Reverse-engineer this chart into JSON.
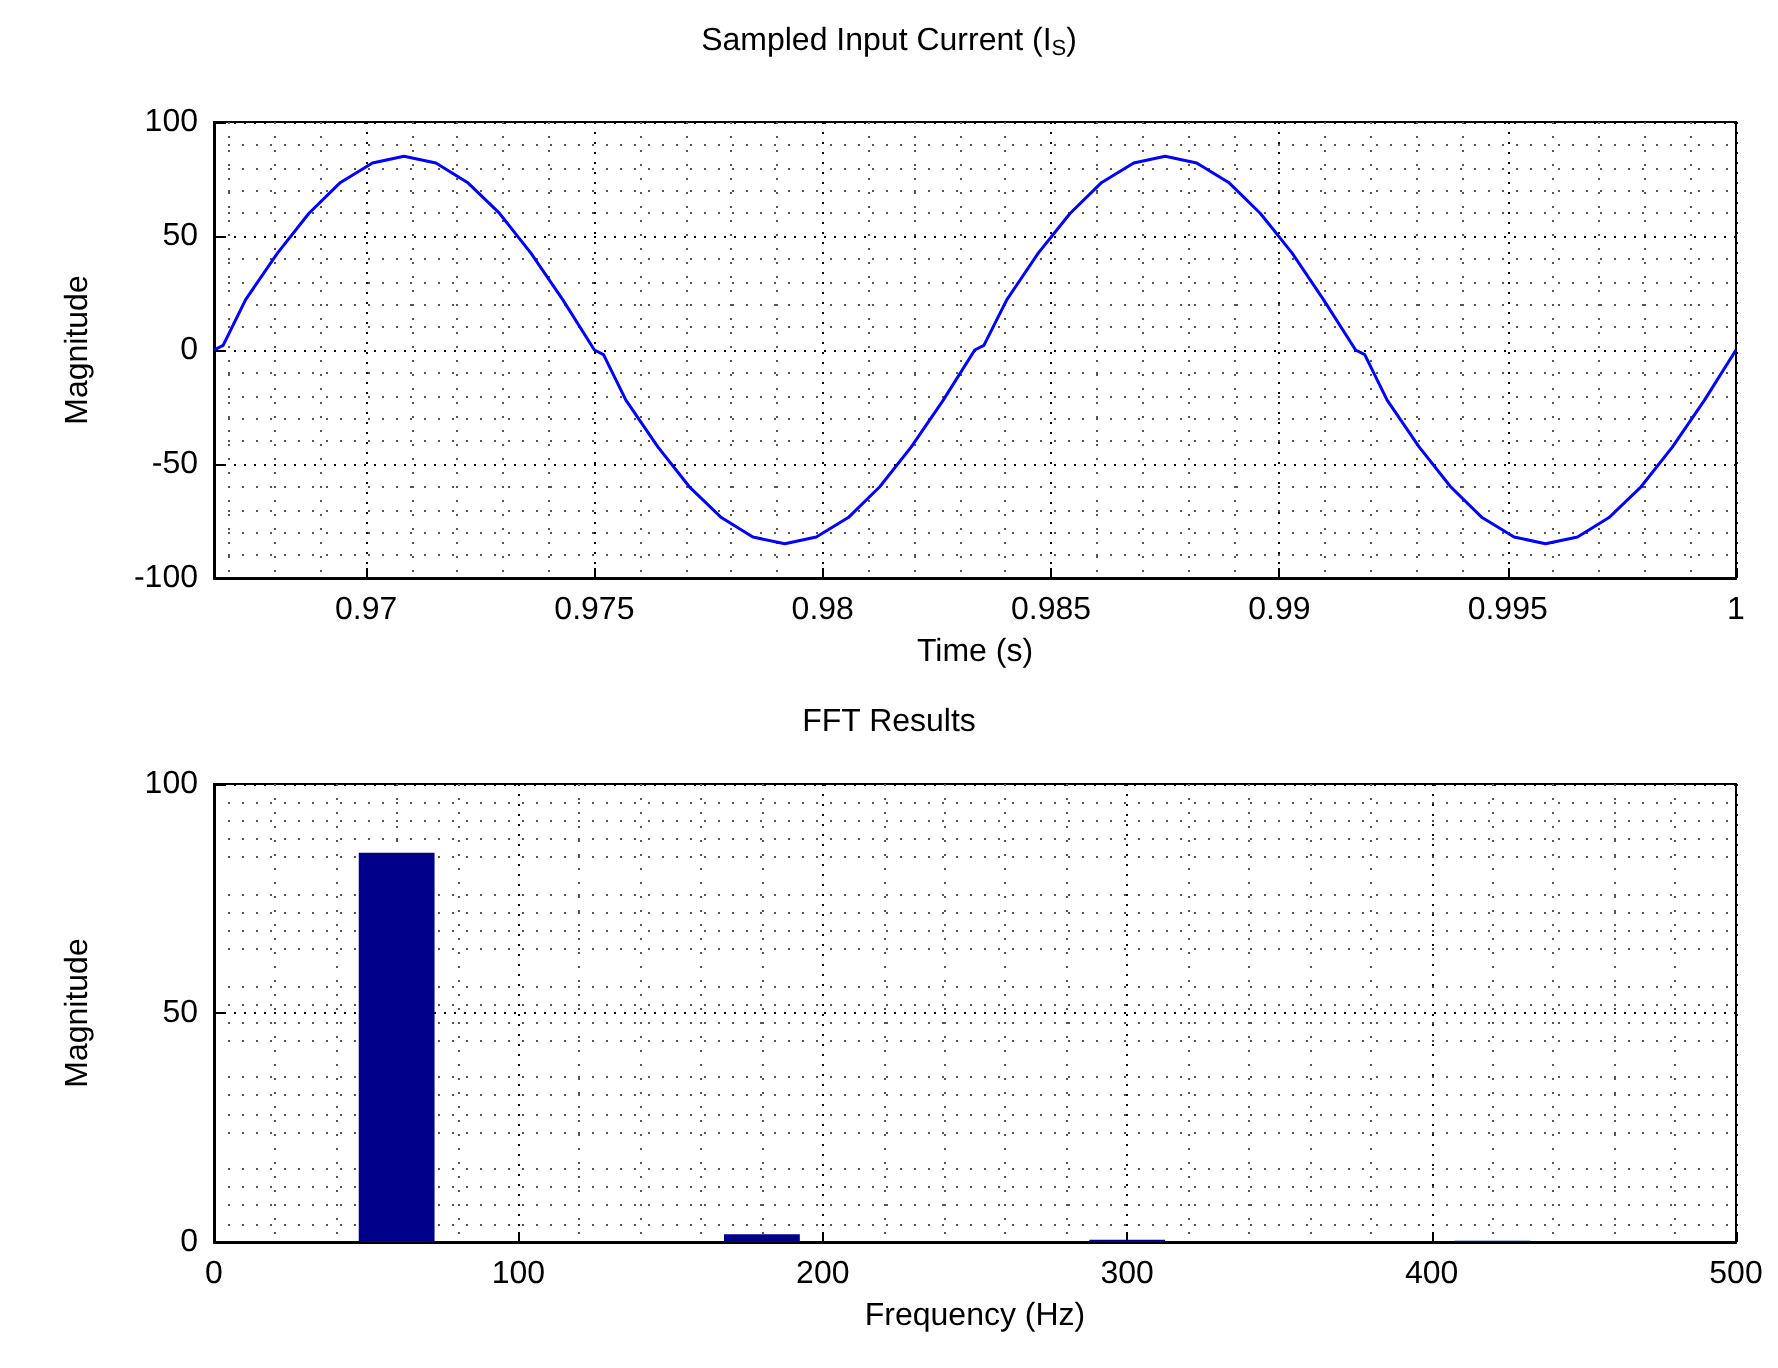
{
  "chart_data": [
    {
      "type": "line",
      "title": "Sampled Input Current (I$_{S}$)",
      "xlabel": "Time (s)",
      "ylabel": "Magnitude",
      "grid": true,
      "marker": "none",
      "line_style": "solid",
      "xlim": [
        0.96667,
        1
      ],
      "xticks": [
        0.97,
        0.975,
        0.98,
        0.985,
        0.99,
        0.995,
        1
      ],
      "ylim": [
        -100,
        100
      ],
      "yticks": [
        -100,
        -50,
        0,
        50,
        100
      ],
      "x": [
        0.96667,
        0.96687,
        0.96736,
        0.96806,
        0.96875,
        0.96944,
        0.97014,
        0.97083,
        0.97153,
        0.97222,
        0.97292,
        0.97361,
        0.97431,
        0.975,
        0.9752,
        0.97569,
        0.97639,
        0.97708,
        0.97778,
        0.97847,
        0.97917,
        0.97986,
        0.98056,
        0.98125,
        0.98194,
        0.98264,
        0.98333,
        0.98353,
        0.98403,
        0.98472,
        0.98542,
        0.98611,
        0.98681,
        0.9875,
        0.98819,
        0.98889,
        0.98958,
        0.99028,
        0.99097,
        0.99167,
        0.99187,
        0.99236,
        0.99306,
        0.99375,
        0.99444,
        0.99514,
        0.99583,
        0.99653,
        0.99722,
        0.99792,
        0.99861,
        0.99931,
        1
      ],
      "series": [
        {
          "color": "#0000ff",
          "values": [
            0,
            2,
            22,
            42.5,
            60,
            73.5,
            82,
            85,
            82,
            73.5,
            60,
            42.5,
            22,
            0,
            -2,
            -22,
            -42.5,
            -60,
            -73.5,
            -82,
            -85,
            -82,
            -73.5,
            -60,
            -42.5,
            -22,
            0,
            2,
            22,
            42.5,
            60,
            73.5,
            82,
            85,
            82,
            73.5,
            60,
            42.5,
            22,
            0,
            -2,
            -22,
            -42.5,
            -60,
            -73.5,
            -82,
            -85,
            -82,
            -73.5,
            -60,
            -42.5,
            -22,
            0
          ]
        }
      ]
    },
    {
      "type": "bar",
      "title": "FFT Results",
      "xlabel": "Frequency (Hz)",
      "ylabel": "Magnitude",
      "grid": true,
      "xlim": [
        0,
        500
      ],
      "xticks": [
        0,
        100,
        200,
        300,
        400,
        500
      ],
      "ylim": [
        0,
        100
      ],
      "yticks": [
        0,
        50,
        100
      ],
      "x": [
        0,
        30,
        60,
        90,
        120,
        150,
        180,
        210,
        240,
        270,
        300,
        330,
        360,
        390,
        420,
        450,
        480
      ],
      "series": [
        {
          "color": "#00008b",
          "values": [
            0,
            0,
            85,
            0,
            0,
            0,
            1.7,
            0,
            0,
            0,
            0.5,
            0,
            0,
            0,
            0.3,
            0,
            0
          ]
        }
      ]
    }
  ]
}
